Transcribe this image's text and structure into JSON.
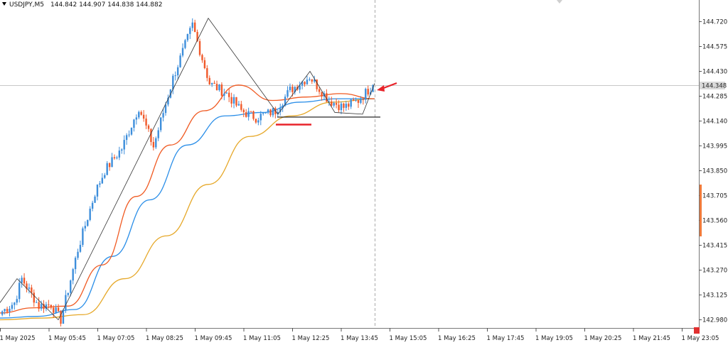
{
  "symbol_header": {
    "symbol": "USDJPY,M5",
    "ohlc": "144.842 144.907 144.838 144.882"
  },
  "price_label": "144.348",
  "chart_data": {
    "type": "candlestick",
    "title": "USDJPY,M5",
    "ylim": [
      142.91,
      144.8
    ],
    "y_ticks": [
      "144.720",
      "144.575",
      "144.430",
      "144.285",
      "144.140",
      "143.995",
      "143.850",
      "143.705",
      "143.560",
      "143.415",
      "143.270",
      "143.125",
      "142.980"
    ],
    "x_ticks": [
      "1 May 2025",
      "1 May 05:45",
      "1 May 07:05",
      "1 May 08:25",
      "1 May 09:45",
      "1 May 11:05",
      "1 May 12:25",
      "1 May 13:45",
      "1 May 15:05",
      "1 May 16:25",
      "1 May 17:45",
      "1 May 19:05",
      "1 May 20:25",
      "1 May 21:45",
      "1 May 23:05"
    ],
    "current_price": 144.348,
    "ohlc_anchor_closes": [
      143.03,
      143.08,
      143.22,
      143.06,
      143.07,
      142.98,
      143.39,
      143.72,
      143.85,
      143.98,
      144.22,
      143.99,
      144.39,
      144.7,
      144.36,
      144.3,
      144.2,
      144.16,
      144.2,
      144.32,
      144.4,
      144.26,
      144.22,
      144.26,
      144.35
    ],
    "zigzag": [
      143.08,
      143.22,
      142.98,
      144.74,
      144.18,
      144.43,
      144.19,
      144.18,
      144.36
    ],
    "ema_fast": [
      143.02,
      143.05,
      143.06,
      143.3,
      143.7,
      144.0,
      144.2,
      144.35,
      144.26,
      144.28,
      144.3,
      144.27
    ],
    "ema_mid": [
      142.99,
      143.0,
      143.04,
      143.35,
      143.68,
      144.0,
      144.17,
      144.19,
      144.25,
      144.27,
      144.27
    ],
    "ema_slow": [
      142.98,
      142.99,
      143.01,
      143.22,
      143.47,
      143.77,
      144.05,
      144.17,
      144.25,
      144.27
    ],
    "support_level": 144.163,
    "grid": false,
    "colors": {
      "bull": "#3d8edb",
      "bear": "#f0592a",
      "ema_fast": "#f05a22",
      "ema_mid": "#2a8ee8",
      "ema_slow": "#e6a829",
      "zigzag": "#333333",
      "annotation": "#e8232a"
    }
  }
}
